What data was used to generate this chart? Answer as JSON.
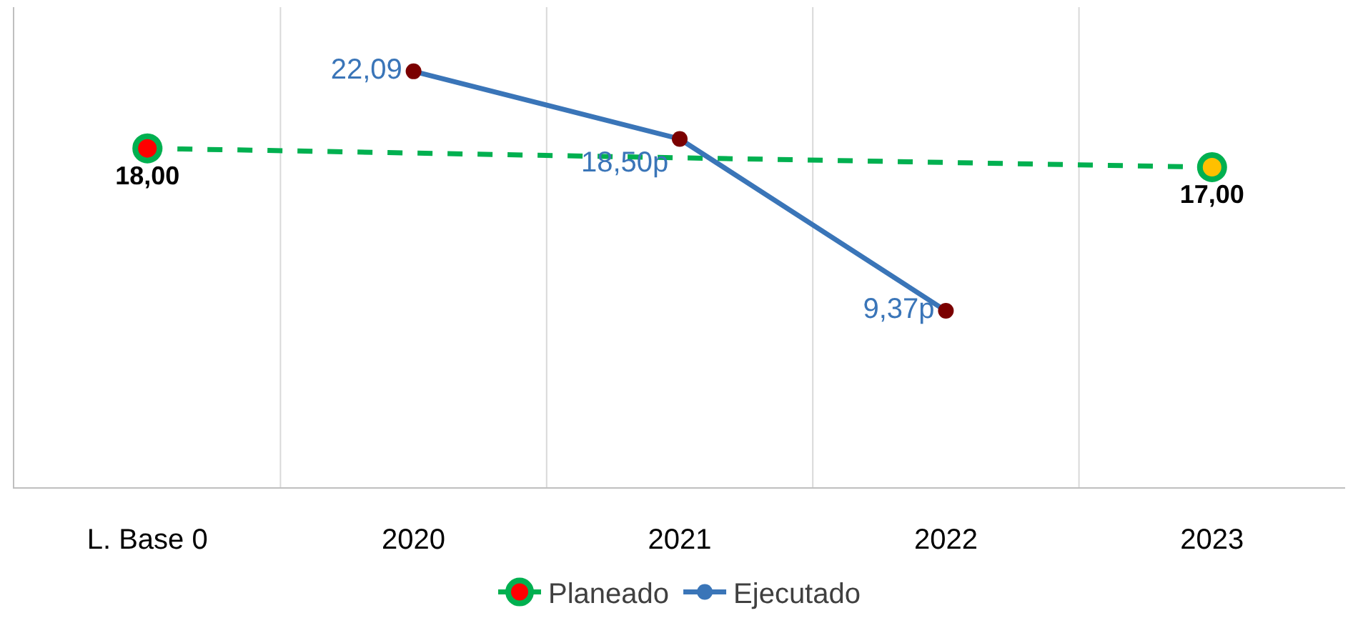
{
  "chart_data": {
    "type": "line",
    "categories": [
      "L. Base 0",
      "2020",
      "2021",
      "2022",
      "2023"
    ],
    "ylim": [
      0,
      25.5
    ],
    "tick_labels": "x",
    "grid": "x",
    "legend": "bottom",
    "marker": "circle",
    "series": [
      {
        "name": "Planeado",
        "color": "#00b050",
        "colors": [
          "#ff0000",
          null,
          null,
          null,
          "#ffc000"
        ],
        "line_style": "dashed",
        "values": [
          18,
          null,
          null,
          null,
          17
        ],
        "value_labels": [
          "18,00",
          null,
          null,
          null,
          "17,00"
        ]
      },
      {
        "name": "Ejecutado",
        "color": "#3a75b8",
        "colors": [
          null,
          "#7b0000",
          "#7b0000",
          "#7b0000",
          null
        ],
        "line_style": "solid",
        "values": [
          null,
          22.09,
          18.5,
          9.37,
          null
        ],
        "value_labels": [
          null,
          "22,09",
          "18,50p",
          "9,37p",
          null
        ]
      }
    ]
  }
}
